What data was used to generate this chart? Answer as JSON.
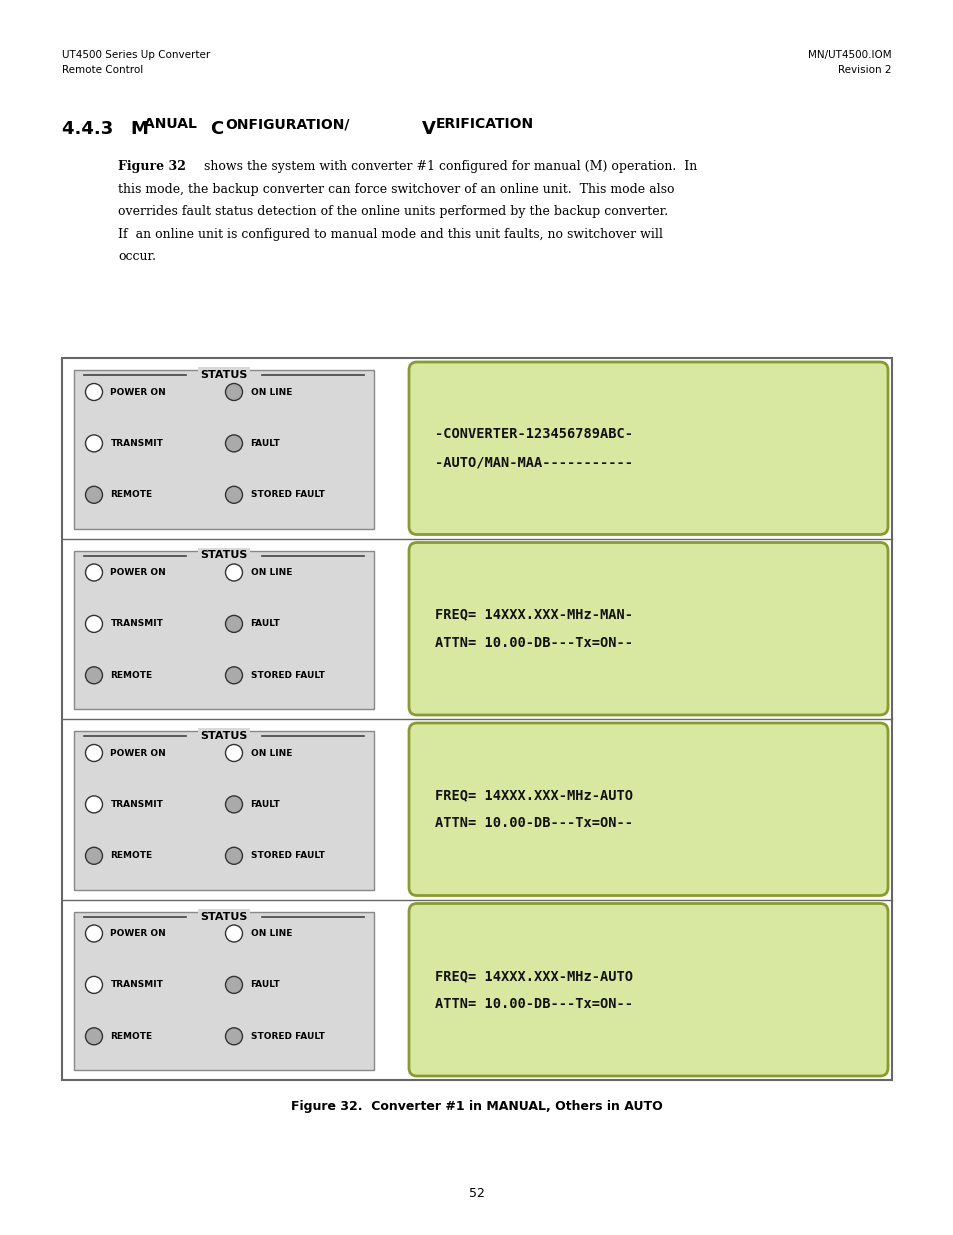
{
  "page_width": 9.54,
  "page_height": 12.35,
  "bg_color": "#ffffff",
  "header_left_line1": "UT4500 Series Up Converter",
  "header_left_line2": "Remote Control",
  "header_right_line1": "MN/UT4500.IOM",
  "header_right_line2": "Revision 2",
  "heading_num": "4.4.3",
  "heading_M": "M",
  "heading_anual": "ANUAL ",
  "heading_C": "C",
  "heading_onfiguration": "ONFIGURATION/",
  "heading_V": "V",
  "heading_erification": "ERIFICATION",
  "para_line1": "Figure 32 shows the system with converter #1 configured for manual (M) operation.  In",
  "para_line1_bold": "Figure 32",
  "para_line2": "this mode, the backup converter can force switchover of an online unit.  This mode also",
  "para_line3": "overrides fault status detection of the online units performed by the backup converter.",
  "para_line4": "If  an online unit is configured to manual mode and this unit faults, no switchover will",
  "para_line5": "occur.",
  "figure_caption": "Figure 32.  Converter #1 in MANUAL, Others in AUTO",
  "page_number": "52",
  "rows": [
    {
      "display_line1": "-CONVERTER-123456789ABC-",
      "display_line2": "-AUTO/MAN-MAA-----------",
      "circle_fills": [
        "#ffffff",
        "#ffffff",
        "#aaaaaa",
        "#aaaaaa",
        "#aaaaaa",
        "#aaaaaa"
      ]
    },
    {
      "display_line1": "FREQ= 14XXX.XXX-MHz-MAN-",
      "display_line2": "ATTN= 10.00-DB---Tx=ON--",
      "circle_fills": [
        "#ffffff",
        "#ffffff",
        "#aaaaaa",
        "#ffffff",
        "#aaaaaa",
        "#aaaaaa"
      ]
    },
    {
      "display_line1": "FREQ= 14XXX.XXX-MHz-AUTO",
      "display_line2": "ATTN= 10.00-DB---Tx=ON--",
      "circle_fills": [
        "#ffffff",
        "#ffffff",
        "#aaaaaa",
        "#ffffff",
        "#aaaaaa",
        "#aaaaaa"
      ]
    },
    {
      "display_line1": "FREQ= 14XXX.XXX-MHz-AUTO",
      "display_line2": "ATTN= 10.00-DB---Tx=ON--",
      "circle_fills": [
        "#ffffff",
        "#ffffff",
        "#aaaaaa",
        "#ffffff",
        "#aaaaaa",
        "#aaaaaa"
      ]
    }
  ],
  "status_bg": "#d8d8d8",
  "display_bg": "#d9e8a0",
  "display_edge": "#8a9a30",
  "outer_border": "#666666",
  "row_border": "#666666"
}
